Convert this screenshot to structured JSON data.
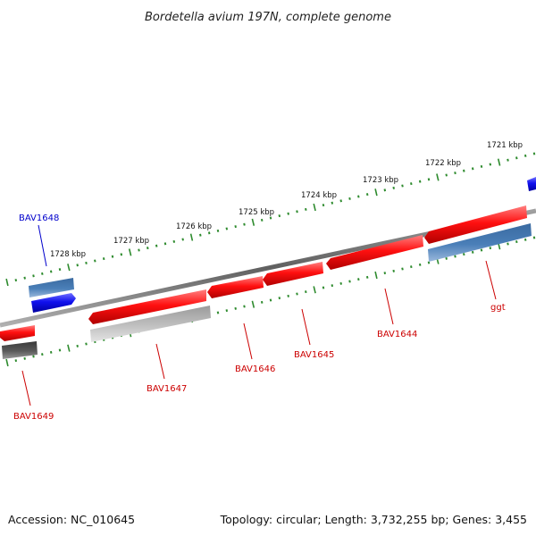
{
  "title": "Bordetella avium 197N, complete genome",
  "footer": {
    "accession": "Accession: NC_010645",
    "info": "Topology: circular; Length: 3,732,255 bp; Genes: 3,455"
  },
  "ticks": [
    "1721 kbp",
    "1722 kbp",
    "1723 kbp",
    "1724 kbp",
    "1725 kbp",
    "1726 kbp",
    "1727 kbp",
    "1728 kbp"
  ],
  "gene_labels": [
    "BAV1648",
    "BAV1649",
    "BAV1647",
    "BAV1646",
    "BAV1645",
    "BAV1644",
    "ggt"
  ],
  "colors": {
    "backbone": "#7a7a7a",
    "tick": "#2e8b2e",
    "red_gene": "#ff1010",
    "blue_gene": "#1010ee",
    "steel_gene": "#4a7fb8",
    "gray_gene": "#c0c0c0",
    "dark_gene": "#5a5a5a",
    "label_red": "#cc0000",
    "label_blue": "#0000cc"
  }
}
